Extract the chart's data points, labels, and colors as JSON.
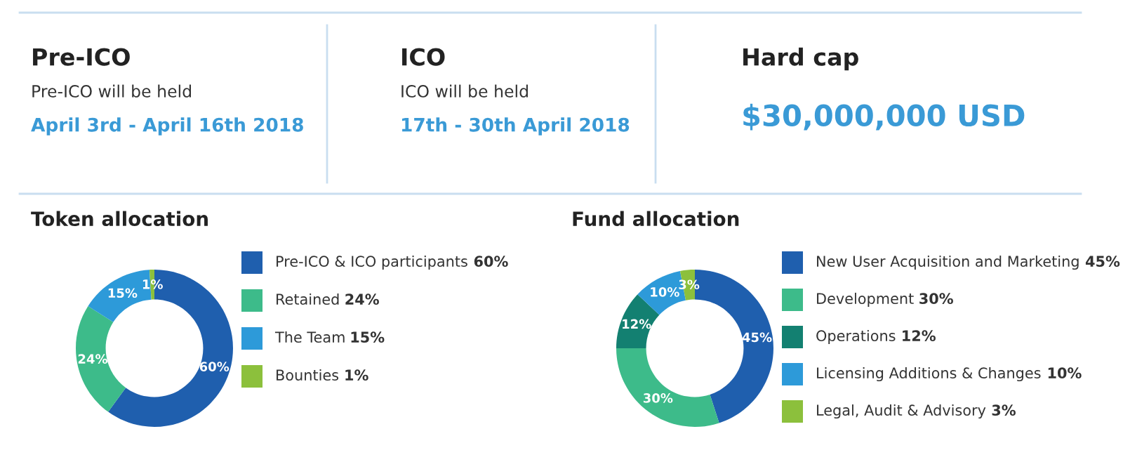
{
  "chart_data": [
    {
      "type": "other",
      "annotations": [
        "Pre-ICO",
        "Pre-ICO will be held",
        "April 3rd - April 16th 2018",
        "ICO",
        "ICO will be held",
        "17th - 30th April 2018",
        "Hard cap",
        "$30,000,000 USD"
      ]
    },
    {
      "type": "donut",
      "title": "Token allocation",
      "categories": [
        "Pre-ICO & ICO participants",
        "Retained",
        "The Team",
        "Bounties"
      ],
      "values": [
        60,
        24,
        15,
        1
      ],
      "value_labels": [
        "60%",
        "24%",
        "15%",
        "1%"
      ],
      "colors": [
        "#1f5fae",
        "#3dbb8a",
        "#2d9ad9",
        "#8cc03c"
      ],
      "legend": "right"
    },
    {
      "type": "donut",
      "title": "Fund allocation",
      "categories": [
        "New User Acquisition and Marketing",
        "Development",
        "Operations",
        "Licensing Additions & Changes",
        "Legal, Audit & Advisory"
      ],
      "values": [
        45,
        30,
        12,
        10,
        3
      ],
      "value_labels": [
        "45%",
        "30%",
        "12%",
        "10%",
        "3%"
      ],
      "colors": [
        "#1f5fae",
        "#3dbb8a",
        "#138071",
        "#2d9ad9",
        "#8cc03c"
      ],
      "legend": "right"
    }
  ]
}
